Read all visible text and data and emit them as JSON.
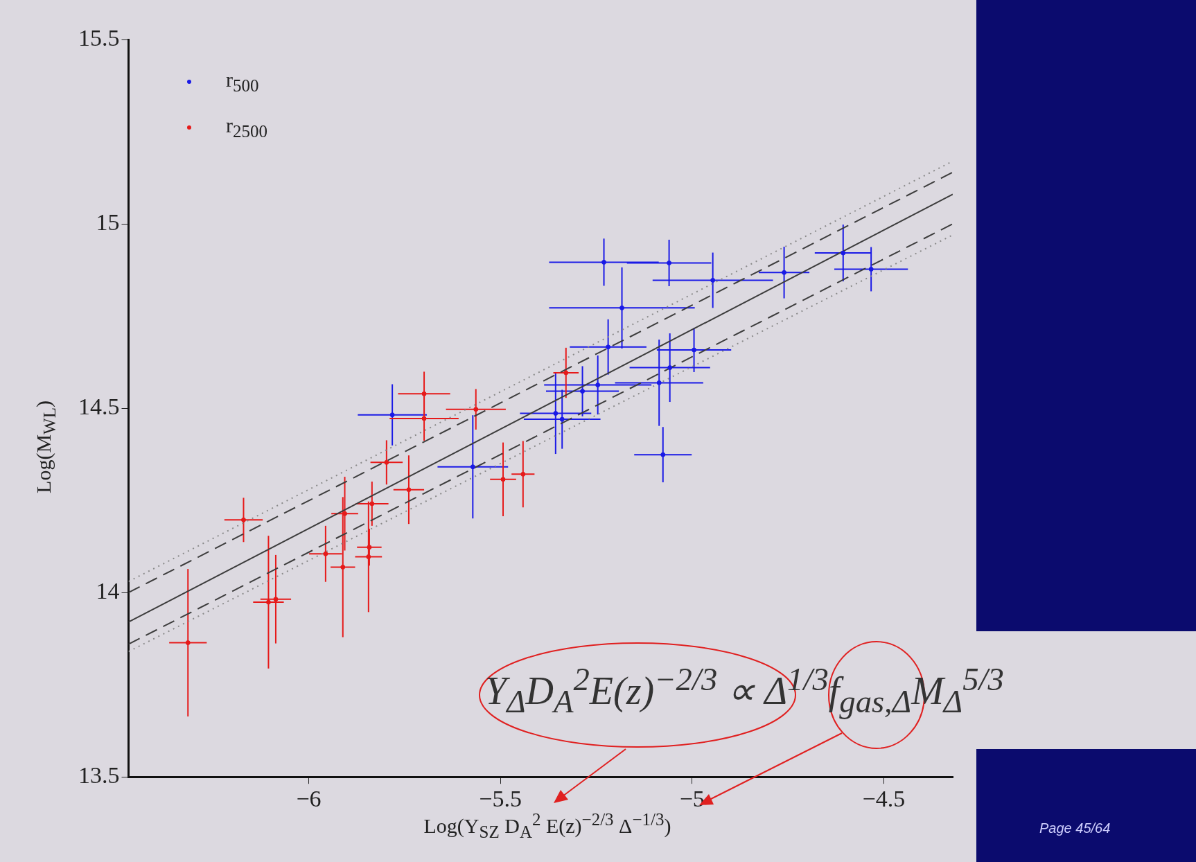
{
  "chart_data": {
    "type": "scatter",
    "xlabel": "Log(Y$_{SZ}$ D$_{A}$$^{2}$ E(z)$^{−2/3}$ Δ$^{−1/3}$)",
    "ylabel": "Log(M$_{WL}$)",
    "xlim": [
      -6.47,
      -4.32
    ],
    "ylim": [
      13.5,
      15.5
    ],
    "xticks": [
      -6,
      -5.5,
      -5,
      -4.5
    ],
    "yticks": [
      13.5,
      14,
      14.5,
      15,
      15.5
    ],
    "grid": false,
    "legend": "top left",
    "marker": "circle",
    "annotations": [
      "Y$_{Δ}$D$_{A}$$^{2}$E(z)$^{−2/3}$ ∝ Δ$^{1/3}$f$_{gas,Δ}$M$_{Δ}$$^{5/3}$",
      "Page 45/64"
    ],
    "series": [
      {
        "name": "r$_{500}$",
        "color": "#1a1ae6",
        "x": [
          -5.782,
          -5.572,
          -5.356,
          -5.339,
          -5.286,
          -5.246,
          -5.23,
          -5.219,
          -5.183,
          -5.086,
          -5.076,
          -5.06,
          -5.058,
          -4.995,
          -4.946,
          -4.76,
          -4.606,
          -4.533
        ],
        "values": [
          14.482,
          14.341,
          14.486,
          14.47,
          14.546,
          14.563,
          14.896,
          14.666,
          14.772,
          14.569,
          14.374,
          14.894,
          14.61,
          14.658,
          14.847,
          14.868,
          14.921,
          14.877
        ],
        "xerrors": [
          0.09,
          0.092,
          0.093,
          0.1,
          0.095,
          0.14,
          0.143,
          0.1,
          0.19,
          0.115,
          0.075,
          0.11,
          0.105,
          0.097,
          0.157,
          0.066,
          0.074,
          0.096
        ],
        "errors": [
          0.083,
          0.14,
          0.11,
          0.08,
          0.068,
          0.08,
          0.064,
          0.075,
          0.11,
          0.117,
          0.075,
          0.063,
          0.093,
          0.06,
          0.075,
          0.07,
          0.077,
          0.06
        ]
      },
      {
        "name": "r$_{2500}$",
        "color": "#e61a1a",
        "x": [
          -6.315,
          -6.17,
          -6.105,
          -6.086,
          -5.956,
          -5.911,
          -5.906,
          -5.844,
          -5.842,
          -5.835,
          -5.797,
          -5.739,
          -5.699,
          -5.699,
          -5.564,
          -5.493,
          -5.441,
          -5.329
        ],
        "values": [
          13.864,
          14.197,
          13.974,
          13.982,
          14.105,
          14.069,
          14.214,
          14.097,
          14.123,
          14.241,
          14.353,
          14.279,
          14.539,
          14.472,
          14.497,
          14.307,
          14.321,
          14.596
        ],
        "xerrors": [
          0.049,
          0.05,
          0.04,
          0.04,
          0.043,
          0.032,
          0.035,
          0.035,
          0.032,
          0.043,
          0.042,
          0.04,
          0.068,
          0.09,
          0.078,
          0.034,
          0.03,
          0.033
        ],
        "errors": [
          0.2,
          0.06,
          0.18,
          0.12,
          0.076,
          0.19,
          0.1,
          0.15,
          0.05,
          0.06,
          0.06,
          0.093,
          0.06,
          0.06,
          0.055,
          0.1,
          0.09,
          0.068
        ]
      },
      {
        "type": "line",
        "color": "#3c3c3c",
        "line_style": "solid",
        "marker": "none",
        "x": [
          -6.47,
          -4.32
        ],
        "values": [
          13.92,
          15.08
        ]
      },
      {
        "type": "line",
        "color": "#3c3c3c",
        "line_style": "dashed",
        "marker": "none",
        "x": [
          -6.47,
          -4.32
        ],
        "values": [
          14.0,
          15.14
        ]
      },
      {
        "type": "line",
        "color": "#3c3c3c",
        "line_style": "dashed",
        "marker": "none",
        "x": [
          -6.47,
          -4.32
        ],
        "values": [
          13.86,
          15.0
        ]
      },
      {
        "type": "line",
        "color": "#8a8a8a",
        "line_style": "dotted",
        "marker": "none",
        "x": [
          -6.47,
          -4.32
        ],
        "values": [
          14.03,
          15.17
        ]
      },
      {
        "type": "line",
        "color": "#8a8a8a",
        "line_style": "dotted",
        "marker": "none",
        "x": [
          -6.47,
          -4.32
        ],
        "values": [
          13.84,
          14.97
        ]
      }
    ]
  }
}
